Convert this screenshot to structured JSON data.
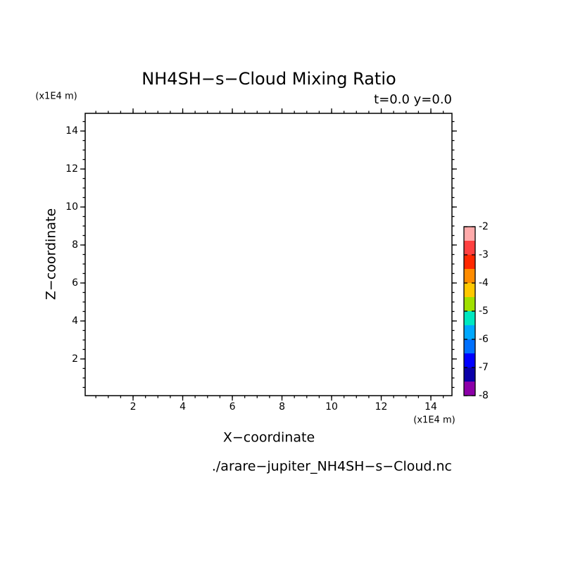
{
  "chart_data": {
    "type": "contour",
    "title": "NH4SH−s−Cloud Mixing Ratio",
    "subtitle": "t=0.0 y=0.0",
    "x_label": "X−coordinate",
    "y_label": "Z−coordinate",
    "x_unit": "(x1E4 m)",
    "y_unit": "(x1E4 m)",
    "footer": "./arare−jupiter_NH4SH−s−Cloud.nc",
    "xlim": [
      0.07,
      14.85
    ],
    "ylim": [
      0.07,
      14.93
    ],
    "xticks": [
      2,
      4,
      6,
      8,
      10,
      12,
      14
    ],
    "yticks": [
      2,
      4,
      6,
      8,
      10,
      12,
      14
    ],
    "colorbar": {
      "lim": [
        -8,
        -2
      ],
      "ticks": [
        -8,
        -7,
        -6,
        -5,
        -4,
        -3,
        -2
      ],
      "colors": [
        "#8c00a8",
        "#0a00a8",
        "#0000ff",
        "#0070ff",
        "#00a8ff",
        "#00e8c0",
        "#a0e000",
        "#ffc800",
        "#ff8c00",
        "#ff2800",
        "#ff4040",
        "#ffaaaa"
      ]
    }
  }
}
